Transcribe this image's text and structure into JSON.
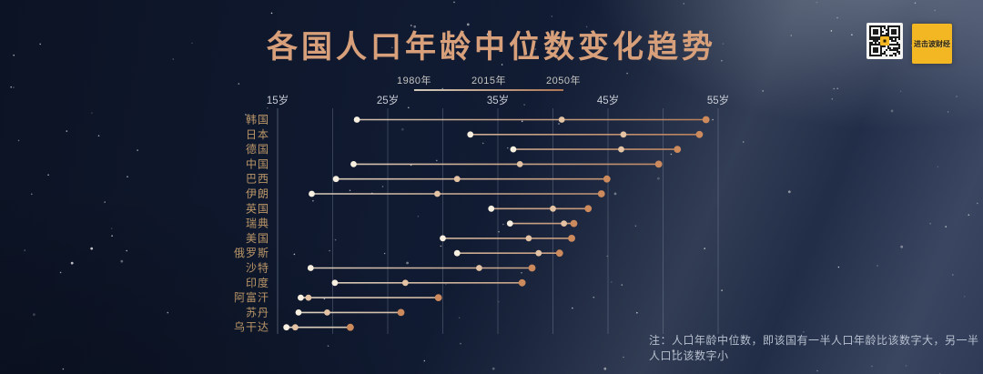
{
  "header": {
    "title": "各国人口年龄中位数变化趋势"
  },
  "note": {
    "text": "注：人口年龄中位数，即该国有一半人口年龄比该数字大，另一半人口比该数字小"
  },
  "branding": {
    "logo_text": "进击波财经"
  },
  "colors": {
    "title": "#d7a07a",
    "country_label": "#bb9768",
    "axis_label": "#c9cdd6",
    "legend_label": "#c6c5c2",
    "grid_line": "#aebacd",
    "note": "#b7c0cf",
    "dot_1980": "#f7efdf",
    "dot_2015": "#e3c3a3",
    "dot_2050": "#cd8a5d",
    "line_start": "#f3e9d5",
    "line_end": "#c98559",
    "logo_bg": "#f2b722",
    "logo_text_color": "#2a210d",
    "star": "#ffffff"
  },
  "chart_data": {
    "type": "dumbbell",
    "title": "各国人口年龄中位数变化趋势",
    "x_axis": {
      "unit": "岁",
      "min": 15,
      "max": 55,
      "grid_step": 5,
      "tick_ages": [
        15,
        25,
        35,
        45,
        55
      ],
      "tick_labels": [
        "15岁",
        "25岁",
        "35岁",
        "45岁",
        "55岁"
      ]
    },
    "grid": true,
    "legend_position": "top-center",
    "series": [
      "1980年",
      "2015年",
      "2050年"
    ],
    "countries": [
      {
        "name": "韩国",
        "values": [
          22.2,
          40.8,
          53.9
        ]
      },
      {
        "name": "日本",
        "values": [
          32.5,
          46.4,
          53.3
        ]
      },
      {
        "name": "德国",
        "values": [
          36.4,
          46.2,
          51.3
        ]
      },
      {
        "name": "中国",
        "values": [
          21.9,
          37.0,
          49.6
        ]
      },
      {
        "name": "巴西",
        "values": [
          20.3,
          31.3,
          44.9
        ]
      },
      {
        "name": "伊朗",
        "values": [
          18.1,
          29.5,
          44.4
        ]
      },
      {
        "name": "英国",
        "values": [
          34.4,
          40.0,
          43.2
        ]
      },
      {
        "name": "瑞典",
        "values": [
          36.1,
          41.0,
          41.9
        ]
      },
      {
        "name": "美国",
        "values": [
          30.0,
          37.8,
          41.7
        ]
      },
      {
        "name": "俄罗斯",
        "values": [
          31.3,
          38.7,
          40.6
        ]
      },
      {
        "name": "沙特",
        "values": [
          18.0,
          33.3,
          38.1
        ]
      },
      {
        "name": "印度",
        "values": [
          20.2,
          26.6,
          37.2
        ]
      },
      {
        "name": "阿富汗",
        "values": [
          17.1,
          17.8,
          29.6
        ]
      },
      {
        "name": "苏丹",
        "values": [
          16.9,
          19.5,
          26.2
        ]
      },
      {
        "name": "乌干达",
        "values": [
          15.8,
          16.6,
          21.6
        ]
      }
    ]
  }
}
